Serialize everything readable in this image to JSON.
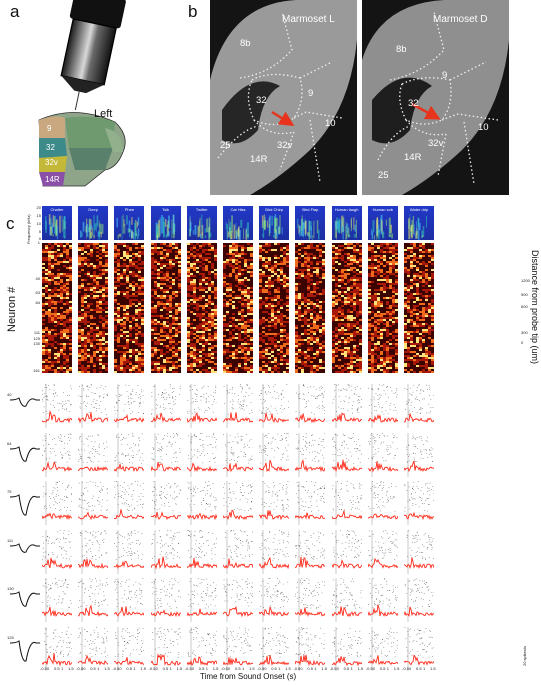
{
  "panels": {
    "a": "a",
    "b": "b",
    "c": "c"
  },
  "panel_a": {
    "hemisphere_label": "Left",
    "regions": [
      "9",
      "32",
      "32v",
      "14R"
    ]
  },
  "panel_b": {
    "left": {
      "title": "Marmoset L",
      "regions": [
        "8b",
        "32",
        "9",
        "10",
        "25",
        "14R",
        "32v"
      ]
    },
    "right": {
      "title": "Marmoset D",
      "regions": [
        "8b",
        "9",
        "32",
        "10",
        "14R",
        "32v",
        "25"
      ]
    }
  },
  "panel_c": {
    "sounds": [
      "Chatter",
      "Deep",
      "Phee",
      "Tsik",
      "Twitter",
      "Cat Hiss",
      "Bird Chirp",
      "Bird Flap",
      "Human laugh",
      "Human sob",
      "Water drip"
    ],
    "spectrogram_ylabel": "Frequency (kHz)",
    "spectrogram_yticks": [
      "20",
      "15",
      "10",
      "5",
      "0"
    ],
    "heatmap_ylabel": "Neuron #",
    "heatmap_left_ticks": [
      "1",
      "40",
      "63",
      "84",
      "111",
      "125",
      "130",
      "161"
    ],
    "heatmap_right_label": "Distance from probe tip (um)",
    "heatmap_right_ticks": [
      "1200",
      "900",
      "600",
      "300",
      "0"
    ],
    "example_neurons": [
      "40",
      "64",
      "75",
      "111",
      "130",
      "125"
    ],
    "raster_xticks": [
      "-0.5",
      "0",
      "0.5",
      "1",
      "1.5"
    ],
    "xlabel": "Time from Sound Onset (s)",
    "scale_label": "20 spikes/s"
  },
  "colors": {
    "spectrogram_bg": "#1f34b8",
    "heatmap_bg": "#2a0000",
    "psth": "#ff2a1a",
    "mri_bg": "#1a1a1a",
    "mri_lines": "#f2f2f2",
    "arrow": "#e8341c"
  }
}
